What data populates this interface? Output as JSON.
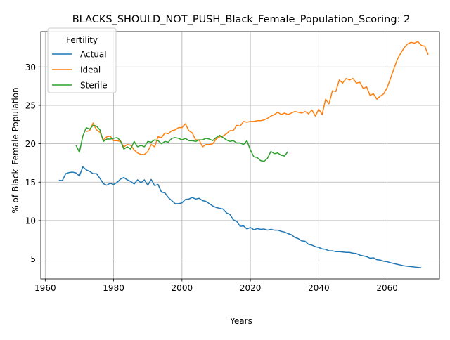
{
  "chart_data": {
    "type": "line",
    "title": "BLACKS_SHOULD_NOT_PUSH_Black_Female_Population_Scoring: 2",
    "xlabel": "Years",
    "ylabel": "% of Black_Female Population",
    "xlim": [
      1958.7,
      2075.3
    ],
    "ylim": [
      2.4,
      34.6
    ],
    "xticks": [
      1960,
      1980,
      2000,
      2020,
      2040,
      2060
    ],
    "yticks": [
      5,
      10,
      15,
      20,
      25,
      30
    ],
    "grid": true,
    "legend": {
      "title": "Fertility",
      "placement": "top-left"
    },
    "series": [
      {
        "name": "Actual",
        "color": "#1f77b4",
        "points": [
          [
            1964,
            15.25
          ],
          [
            1965,
            15.2
          ],
          [
            1966,
            16.1
          ],
          [
            1967,
            16.25
          ],
          [
            1968,
            16.3
          ],
          [
            1969,
            16.2
          ],
          [
            1970,
            15.8
          ],
          [
            1971,
            17.0
          ],
          [
            1972,
            16.6
          ],
          [
            1973,
            16.4
          ],
          [
            1974,
            16.1
          ],
          [
            1975,
            16.1
          ],
          [
            1976,
            15.5
          ],
          [
            1977,
            14.8
          ],
          [
            1978,
            14.6
          ],
          [
            1979,
            14.85
          ],
          [
            1980,
            14.7
          ],
          [
            1981,
            14.95
          ],
          [
            1982,
            15.4
          ],
          [
            1983,
            15.6
          ],
          [
            1984,
            15.3
          ],
          [
            1985,
            15.1
          ],
          [
            1986,
            14.75
          ],
          [
            1987,
            15.3
          ],
          [
            1988,
            14.9
          ],
          [
            1989,
            15.3
          ],
          [
            1990,
            14.6
          ],
          [
            1991,
            15.35
          ],
          [
            1992,
            14.55
          ],
          [
            1993,
            14.7
          ],
          [
            1994,
            13.7
          ],
          [
            1995,
            13.6
          ],
          [
            1996,
            13.0
          ],
          [
            1997,
            12.6
          ],
          [
            1998,
            12.2
          ],
          [
            1999,
            12.2
          ],
          [
            2000,
            12.3
          ],
          [
            2001,
            12.75
          ],
          [
            2002,
            12.8
          ],
          [
            2003,
            13.0
          ],
          [
            2004,
            12.8
          ],
          [
            2005,
            12.9
          ],
          [
            2006,
            12.6
          ],
          [
            2007,
            12.5
          ],
          [
            2008,
            12.2
          ],
          [
            2009,
            11.9
          ],
          [
            2010,
            11.7
          ],
          [
            2011,
            11.6
          ],
          [
            2012,
            11.5
          ],
          [
            2013,
            11.0
          ],
          [
            2014,
            10.8
          ],
          [
            2015,
            10.1
          ],
          [
            2016,
            9.9
          ],
          [
            2017,
            9.25
          ],
          [
            2018,
            9.3
          ],
          [
            2019,
            8.9
          ],
          [
            2020,
            9.1
          ],
          [
            2021,
            8.8
          ],
          [
            2022,
            8.95
          ],
          [
            2023,
            8.85
          ],
          [
            2024,
            8.9
          ],
          [
            2025,
            8.75
          ],
          [
            2026,
            8.85
          ],
          [
            2027,
            8.75
          ],
          [
            2028,
            8.75
          ],
          [
            2029,
            8.6
          ],
          [
            2030,
            8.5
          ],
          [
            2031,
            8.3
          ],
          [
            2032,
            8.15
          ],
          [
            2033,
            7.8
          ],
          [
            2034,
            7.65
          ],
          [
            2035,
            7.35
          ],
          [
            2036,
            7.3
          ],
          [
            2037,
            6.9
          ],
          [
            2038,
            6.8
          ],
          [
            2039,
            6.6
          ],
          [
            2040,
            6.5
          ],
          [
            2041,
            6.3
          ],
          [
            2042,
            6.25
          ],
          [
            2043,
            6.05
          ],
          [
            2044,
            6.05
          ],
          [
            2045,
            5.95
          ],
          [
            2046,
            5.95
          ],
          [
            2047,
            5.9
          ],
          [
            2048,
            5.85
          ],
          [
            2049,
            5.85
          ],
          [
            2050,
            5.75
          ],
          [
            2051,
            5.7
          ],
          [
            2052,
            5.5
          ],
          [
            2053,
            5.4
          ],
          [
            2054,
            5.3
          ],
          [
            2055,
            5.1
          ],
          [
            2056,
            5.15
          ],
          [
            2057,
            4.9
          ],
          [
            2058,
            4.85
          ],
          [
            2059,
            4.7
          ],
          [
            2060,
            4.65
          ],
          [
            2061,
            4.5
          ],
          [
            2062,
            4.4
          ],
          [
            2063,
            4.3
          ],
          [
            2064,
            4.2
          ],
          [
            2065,
            4.1
          ],
          [
            2066,
            4.05
          ],
          [
            2067,
            4.0
          ],
          [
            2068,
            3.95
          ],
          [
            2069,
            3.9
          ],
          [
            2070,
            3.85
          ]
        ]
      },
      {
        "name": "Ideal",
        "color": "#ff7f0e",
        "points": [
          [
            1972,
            21.6
          ],
          [
            1973,
            21.7
          ],
          [
            1974,
            22.7
          ],
          [
            1975,
            21.8
          ],
          [
            1976,
            21.5
          ],
          [
            1977,
            20.5
          ],
          [
            1978,
            20.9
          ],
          [
            1979,
            21.0
          ],
          [
            1980,
            20.4
          ],
          [
            1981,
            20.4
          ],
          [
            1982,
            20.3
          ],
          [
            1983,
            19.6
          ],
          [
            1984,
            19.9
          ],
          [
            1985,
            19.8
          ],
          [
            1986,
            19.2
          ],
          [
            1987,
            18.8
          ],
          [
            1988,
            18.6
          ],
          [
            1989,
            18.6
          ],
          [
            1990,
            19.0
          ],
          [
            1991,
            19.9
          ],
          [
            1992,
            19.6
          ],
          [
            1993,
            20.9
          ],
          [
            1994,
            20.8
          ],
          [
            1995,
            21.4
          ],
          [
            1996,
            21.3
          ],
          [
            1997,
            21.7
          ],
          [
            1998,
            21.8
          ],
          [
            1999,
            22.1
          ],
          [
            2000,
            22.1
          ],
          [
            2001,
            22.6
          ],
          [
            2002,
            21.7
          ],
          [
            2003,
            21.4
          ],
          [
            2004,
            20.5
          ],
          [
            2005,
            20.5
          ],
          [
            2006,
            19.6
          ],
          [
            2007,
            19.9
          ],
          [
            2008,
            19.9
          ],
          [
            2009,
            20.0
          ],
          [
            2010,
            20.6
          ],
          [
            2011,
            20.9
          ],
          [
            2012,
            21.0
          ],
          [
            2013,
            21.3
          ],
          [
            2014,
            21.7
          ],
          [
            2015,
            21.7
          ],
          [
            2016,
            22.4
          ],
          [
            2017,
            22.3
          ],
          [
            2018,
            22.9
          ],
          [
            2019,
            22.8
          ],
          [
            2020,
            22.9
          ],
          [
            2021,
            22.9
          ],
          [
            2022,
            23.0
          ],
          [
            2023,
            23.0
          ],
          [
            2024,
            23.1
          ],
          [
            2025,
            23.3
          ],
          [
            2026,
            23.6
          ],
          [
            2027,
            23.8
          ],
          [
            2028,
            24.1
          ],
          [
            2029,
            23.8
          ],
          [
            2030,
            24.0
          ],
          [
            2031,
            23.8
          ],
          [
            2032,
            24.0
          ],
          [
            2033,
            24.2
          ],
          [
            2034,
            24.1
          ],
          [
            2035,
            24.0
          ],
          [
            2036,
            24.2
          ],
          [
            2037,
            23.9
          ],
          [
            2038,
            24.4
          ],
          [
            2039,
            23.6
          ],
          [
            2040,
            24.5
          ],
          [
            2041,
            23.8
          ],
          [
            2042,
            25.8
          ],
          [
            2043,
            25.2
          ],
          [
            2044,
            26.9
          ],
          [
            2045,
            26.8
          ],
          [
            2046,
            28.3
          ],
          [
            2047,
            27.9
          ],
          [
            2048,
            28.5
          ],
          [
            2049,
            28.3
          ],
          [
            2050,
            28.5
          ],
          [
            2051,
            27.9
          ],
          [
            2052,
            28.0
          ],
          [
            2053,
            27.2
          ],
          [
            2054,
            27.4
          ],
          [
            2055,
            26.3
          ],
          [
            2056,
            26.5
          ],
          [
            2057,
            25.8
          ],
          [
            2058,
            26.2
          ],
          [
            2059,
            26.5
          ],
          [
            2060,
            27.3
          ],
          [
            2061,
            28.5
          ],
          [
            2062,
            29.8
          ],
          [
            2063,
            31.0
          ],
          [
            2064,
            31.8
          ],
          [
            2065,
            32.5
          ],
          [
            2066,
            33.0
          ],
          [
            2067,
            33.2
          ],
          [
            2068,
            33.1
          ],
          [
            2069,
            33.3
          ],
          [
            2070,
            32.8
          ],
          [
            2071,
            32.7
          ],
          [
            2072,
            31.6
          ]
        ]
      },
      {
        "name": "Sterile",
        "color": "#2ca02c",
        "points": [
          [
            1969,
            19.8
          ],
          [
            1970,
            18.9
          ],
          [
            1971,
            21.0
          ],
          [
            1972,
            22.1
          ],
          [
            1973,
            21.9
          ],
          [
            1974,
            22.4
          ],
          [
            1975,
            22.3
          ],
          [
            1976,
            21.8
          ],
          [
            1977,
            20.3
          ],
          [
            1978,
            20.6
          ],
          [
            1979,
            20.6
          ],
          [
            1980,
            20.7
          ],
          [
            1981,
            20.8
          ],
          [
            1982,
            20.4
          ],
          [
            1983,
            19.3
          ],
          [
            1984,
            19.6
          ],
          [
            1985,
            19.3
          ],
          [
            1986,
            20.3
          ],
          [
            1987,
            19.6
          ],
          [
            1988,
            19.8
          ],
          [
            1989,
            19.6
          ],
          [
            1990,
            20.3
          ],
          [
            1991,
            20.2
          ],
          [
            1992,
            20.5
          ],
          [
            1993,
            20.4
          ],
          [
            1994,
            20.0
          ],
          [
            1995,
            20.3
          ],
          [
            1996,
            20.2
          ],
          [
            1997,
            20.7
          ],
          [
            1998,
            20.8
          ],
          [
            1999,
            20.7
          ],
          [
            2000,
            20.5
          ],
          [
            2001,
            20.7
          ],
          [
            2002,
            20.4
          ],
          [
            2003,
            20.4
          ],
          [
            2004,
            20.3
          ],
          [
            2005,
            20.5
          ],
          [
            2006,
            20.5
          ],
          [
            2007,
            20.7
          ],
          [
            2008,
            20.6
          ],
          [
            2009,
            20.4
          ],
          [
            2010,
            20.8
          ],
          [
            2011,
            21.1
          ],
          [
            2012,
            20.8
          ],
          [
            2013,
            20.5
          ],
          [
            2014,
            20.3
          ],
          [
            2015,
            20.4
          ],
          [
            2016,
            20.1
          ],
          [
            2017,
            20.1
          ],
          [
            2018,
            19.9
          ],
          [
            2019,
            20.4
          ],
          [
            2020,
            19.2
          ],
          [
            2021,
            18.3
          ],
          [
            2022,
            18.2
          ],
          [
            2023,
            17.8
          ],
          [
            2024,
            17.7
          ],
          [
            2025,
            18.1
          ],
          [
            2026,
            19.0
          ],
          [
            2027,
            18.7
          ],
          [
            2028,
            18.8
          ],
          [
            2029,
            18.5
          ],
          [
            2030,
            18.4
          ],
          [
            2031,
            19.0
          ]
        ]
      }
    ]
  }
}
